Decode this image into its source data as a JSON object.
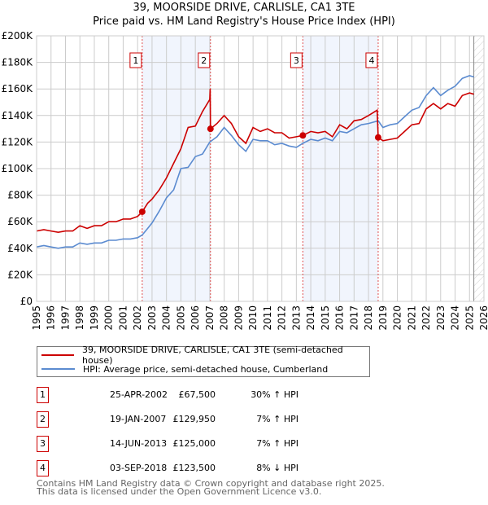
{
  "chart_data": {
    "type": "line",
    "title": "39, MOORSIDE DRIVE, CARLISLE, CA1 3TE",
    "subtitle": "Price paid vs. HM Land Registry's House Price Index (HPI)",
    "xlim": [
      1995,
      2026
    ],
    "ylim": [
      0,
      200000
    ],
    "yticks": [
      0,
      20000,
      40000,
      60000,
      80000,
      100000,
      120000,
      140000,
      160000,
      180000,
      200000
    ],
    "ytick_labels": [
      "£0",
      "£20K",
      "£40K",
      "£60K",
      "£80K",
      "£100K",
      "£120K",
      "£140K",
      "£160K",
      "£180K",
      "£200K"
    ],
    "xticks": [
      "1995",
      "1996",
      "1997",
      "1998",
      "1999",
      "2000",
      "2001",
      "2002",
      "2003",
      "2004",
      "2005",
      "2006",
      "2007",
      "2008",
      "2009",
      "2010",
      "2011",
      "2012",
      "2013",
      "2014",
      "2015",
      "2016",
      "2017",
      "2018",
      "2019",
      "2020",
      "2021",
      "2022",
      "2023",
      "2024",
      "2025",
      "2026"
    ],
    "grid": true,
    "series": [
      {
        "name": "39, MOORSIDE DRIVE, CARLISLE, CA1 3TE (semi-detached house)",
        "color": "#cc0000",
        "x": [
          1995,
          1995.5,
          1996,
          1996.5,
          1997,
          1997.5,
          1998,
          1998.5,
          1999,
          1999.5,
          2000,
          2000.5,
          2001,
          2001.5,
          2002,
          2002.32,
          2002.7,
          2003,
          2003.5,
          2004,
          2004.5,
          2005,
          2005.5,
          2006,
          2006.5,
          2007,
          2007.03,
          2007.05,
          2007.5,
          2008,
          2008.5,
          2009,
          2009.5,
          2010,
          2010.5,
          2011,
          2011.5,
          2012,
          2012.5,
          2013,
          2013.45,
          2014,
          2014.5,
          2015,
          2015.5,
          2016,
          2016.5,
          2017,
          2017.5,
          2018,
          2018.6,
          2018.67,
          2019,
          2019.5,
          2020,
          2020.5,
          2021,
          2021.5,
          2022,
          2022.5,
          2023,
          2023.5,
          2024,
          2024.5,
          2025,
          2025.3
        ],
        "y": [
          53000,
          54000,
          53000,
          52000,
          53000,
          53000,
          57000,
          55000,
          57000,
          57000,
          60000,
          60000,
          62000,
          62000,
          64000,
          67500,
          74000,
          77000,
          84000,
          93000,
          104000,
          115000,
          131000,
          132000,
          143000,
          152000,
          160000,
          129950,
          134000,
          140000,
          134000,
          124000,
          119000,
          131000,
          128000,
          130000,
          127000,
          127000,
          123000,
          124000,
          125000,
          128000,
          127000,
          128000,
          124000,
          133000,
          130000,
          136000,
          137000,
          140000,
          144000,
          123500,
          121000,
          122000,
          123000,
          128000,
          133000,
          134000,
          145000,
          149000,
          145000,
          149000,
          147000,
          155000,
          157000,
          156000
        ]
      },
      {
        "name": "HPI: Average price, semi-detached house, Cumberland",
        "color": "#5b8bd0",
        "x": [
          1995,
          1995.5,
          1996,
          1996.5,
          1997,
          1997.5,
          1998,
          1998.5,
          1999,
          1999.5,
          2000,
          2000.5,
          2001,
          2001.5,
          2002,
          2002.32,
          2002.7,
          2003,
          2003.5,
          2004,
          2004.5,
          2005,
          2005.5,
          2006,
          2006.5,
          2007,
          2007.5,
          2008,
          2008.5,
          2009,
          2009.5,
          2010,
          2010.5,
          2011,
          2011.5,
          2012,
          2012.5,
          2013,
          2013.45,
          2014,
          2014.5,
          2015,
          2015.5,
          2016,
          2016.5,
          2017,
          2017.5,
          2018,
          2018.67,
          2019,
          2019.5,
          2020,
          2020.5,
          2021,
          2021.5,
          2022,
          2022.5,
          2023,
          2023.5,
          2024,
          2024.5,
          2025,
          2025.3
        ],
        "y": [
          41000,
          42000,
          41000,
          40000,
          41000,
          41000,
          44000,
          43000,
          44000,
          44000,
          46000,
          46000,
          47000,
          47000,
          48000,
          50000,
          55000,
          59000,
          68000,
          78000,
          84000,
          100000,
          101000,
          109000,
          111000,
          120000,
          124000,
          131000,
          125000,
          118000,
          113000,
          122000,
          121000,
          121000,
          118000,
          119000,
          117000,
          116000,
          119000,
          122000,
          121000,
          123000,
          121000,
          128000,
          127000,
          130000,
          133000,
          134000,
          136000,
          131000,
          133000,
          134000,
          139000,
          144000,
          146000,
          155000,
          161000,
          155000,
          159000,
          162000,
          168000,
          170000,
          169000
        ]
      }
    ],
    "sales": [
      {
        "id": "1",
        "x": 2002.32,
        "y": 67500
      },
      {
        "id": "2",
        "x": 2007.05,
        "y": 129950
      },
      {
        "id": "3",
        "x": 2013.45,
        "y": 125000
      },
      {
        "id": "4",
        "x": 2018.67,
        "y": 123500
      }
    ],
    "shaded_periods": [
      [
        2002.32,
        2007.05
      ],
      [
        2013.45,
        2018.67
      ]
    ],
    "forecast_start": 2025.3
  },
  "title_line1": "39, MOORSIDE DRIVE, CARLISLE, CA1 3TE",
  "title_line2": "Price paid vs. HM Land Registry's House Price Index (HPI)",
  "legend": {
    "property": "39, MOORSIDE DRIVE, CARLISLE, CA1 3TE (semi-detached house)",
    "hpi": "HPI: Average price, semi-detached house, Cumberland"
  },
  "transactions": [
    {
      "num": "1",
      "date": "25-APR-2002",
      "price": "£67,500",
      "hpi": "30% ↑ HPI"
    },
    {
      "num": "2",
      "date": "19-JAN-2007",
      "price": "£129,950",
      "hpi": "7% ↑ HPI"
    },
    {
      "num": "3",
      "date": "14-JUN-2013",
      "price": "£125,000",
      "hpi": "7% ↑ HPI"
    },
    {
      "num": "4",
      "date": "03-SEP-2018",
      "price": "£123,500",
      "hpi": "8% ↓ HPI"
    }
  ],
  "footer": {
    "line1": "Contains HM Land Registry data © Crown copyright and database right 2025.",
    "line2": "This data is licensed under the Open Government Licence v3.0."
  }
}
